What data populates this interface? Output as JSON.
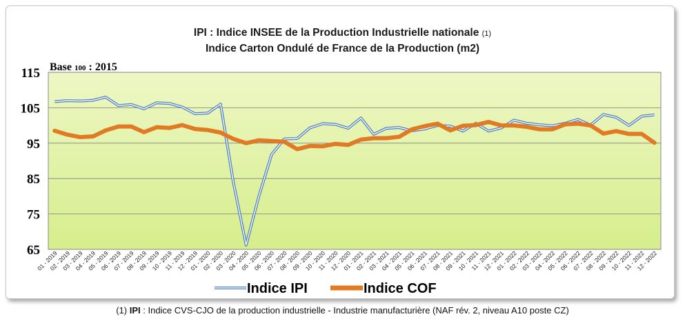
{
  "header": {
    "title1": "IPI : Indice INSEE de la Production Industrielle nationale",
    "title1_note": "(1)",
    "title2": "Indice Carton Ondulé de France de la Production (m2)"
  },
  "base": {
    "label": "Base",
    "year_prefix": "100",
    "year": ": 2015"
  },
  "footnote": {
    "marker": "(1)",
    "abbr": "IPI",
    "text": ": Indice CVS-CJO de la production industrielle  - Industrie manufacturière (NAF rév. 2, niveau A10 poste CZ)"
  },
  "colors": {
    "plot_top": "#eef7c4",
    "plot_bottom": "#d6ee8c",
    "ipi": "#4f80c0",
    "cof": "#e07a25"
  },
  "chart_data": {
    "type": "line",
    "ylim": [
      65,
      115
    ],
    "yticks": [
      65,
      75,
      85,
      95,
      105,
      115
    ],
    "grid": true,
    "legend_position": "bottom",
    "categories": [
      "01 - 2019",
      "02 - 2019",
      "03 - 2019",
      "04 - 2019",
      "05 - 2019",
      "06 - 2019",
      "07 - 2019",
      "08 - 2019",
      "09 - 2019",
      "10 - 2019",
      "11 - 2019",
      "12 - 2019",
      "01 - 2020",
      "02 - 2020",
      "03 - 2020",
      "04 - 2020",
      "05 - 2020",
      "06 - 2020",
      "07 - 2020",
      "08 - 2020",
      "09 - 2020",
      "10 - 2020",
      "11 - 2020",
      "12 - 2020",
      "01 - 2021",
      "02 - 2021",
      "03 - 2021",
      "04 - 2021",
      "05 - 2021",
      "06 - 2021",
      "07 - 2021",
      "08 - 2021",
      "09 - 2021",
      "10 - 2021",
      "11 - 2021",
      "12 - 2021",
      "01 - 2022",
      "02 - 2022",
      "03 - 2022",
      "04 - 2022",
      "05 - 2022",
      "06 - 2022",
      "07 - 2022",
      "08 - 2022",
      "09 - 2022",
      "10 - 2022",
      "11 - 2022",
      "12 - 2022"
    ],
    "series": [
      {
        "name": "Indice IPI",
        "values": [
          106.7,
          107.0,
          106.9,
          107.1,
          108.0,
          105.6,
          105.9,
          104.7,
          106.4,
          106.2,
          105.2,
          103.3,
          103.5,
          106.0,
          84.0,
          66.2,
          80.0,
          91.8,
          96.2,
          96.3,
          99.3,
          100.5,
          100.3,
          99.2,
          102.1,
          97.5,
          99.2,
          99.4,
          98.5,
          99.0,
          100.0,
          99.8,
          98.4,
          100.6,
          98.4,
          99.3,
          101.5,
          100.6,
          100.2,
          99.9,
          100.6,
          101.7,
          100.1,
          103.1,
          102.3,
          100.0,
          102.6,
          103.0
        ]
      },
      {
        "name": "Indice COF",
        "values": [
          98.5,
          97.4,
          96.7,
          96.9,
          98.6,
          99.7,
          99.7,
          98.1,
          99.5,
          99.3,
          100.1,
          99.0,
          98.7,
          98.0,
          96.2,
          95.0,
          95.8,
          95.6,
          95.4,
          93.3,
          94.2,
          94.1,
          94.8,
          94.5,
          96.0,
          96.4,
          96.4,
          96.8,
          98.9,
          99.8,
          100.5,
          98.6,
          99.9,
          100.1,
          101.0,
          100.0,
          100.0,
          99.6,
          98.9,
          98.9,
          100.3,
          100.5,
          100.0,
          97.7,
          98.4,
          97.6,
          97.6,
          95.1
        ]
      }
    ]
  }
}
